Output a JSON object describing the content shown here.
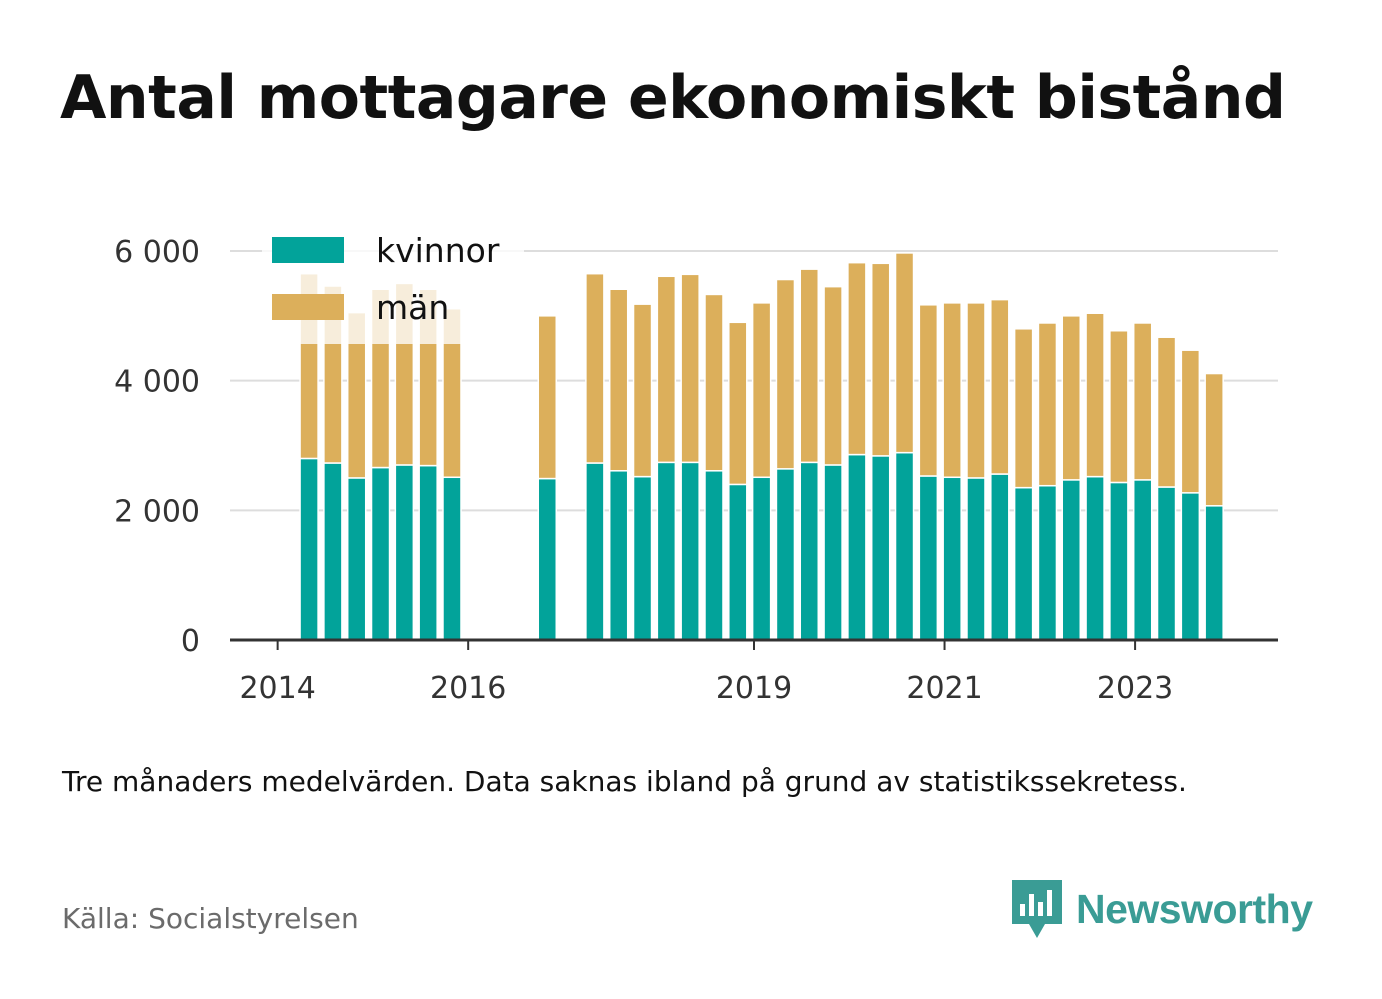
{
  "title": "Antal mottagare ekonomiskt bistånd",
  "note": "Tre månaders medelvärden. Data saknas ibland på grund av statistikssekretess.",
  "source": "Källa: Socialstyrelsen",
  "brand": {
    "name": "Newsworthy",
    "icon": "newsworthy-logo-icon",
    "color": "#3a9c95"
  },
  "colors": {
    "kvinnor": "#02a39a",
    "man": "#dcaf5b",
    "grid": "#dddddd",
    "axis": "#333333"
  },
  "chart_data": {
    "type": "bar",
    "stacked": true,
    "x_unit": "year",
    "x_ticks": [
      {
        "value": 2014.0,
        "label": "2014"
      },
      {
        "value": 2016.0,
        "label": "2016"
      },
      {
        "value": 2019.0,
        "label": "2019"
      },
      {
        "value": 2021.0,
        "label": "2021"
      },
      {
        "value": 2023.0,
        "label": "2023"
      }
    ],
    "y_ticks": [
      {
        "value": 0,
        "label": "0"
      },
      {
        "value": 2000,
        "label": "2 000"
      },
      {
        "value": 4000,
        "label": "4 000"
      },
      {
        "value": 6000,
        "label": "6 000"
      }
    ],
    "xlim": [
      2013.5,
      2024.5
    ],
    "ylim": [
      0,
      6000
    ],
    "grid": true,
    "legend": {
      "placement": "top-left",
      "entries": [
        "kvinnor",
        "män"
      ]
    },
    "x": [
      2014.33,
      2014.58,
      2014.83,
      2015.08,
      2015.33,
      2015.58,
      2015.83,
      2016.83,
      2017.33,
      2017.58,
      2017.83,
      2018.08,
      2018.33,
      2018.58,
      2018.83,
      2019.08,
      2019.33,
      2019.58,
      2019.83,
      2020.08,
      2020.33,
      2020.58,
      2020.83,
      2021.08,
      2021.33,
      2021.58,
      2021.83,
      2022.08,
      2022.33,
      2022.58,
      2022.83,
      2023.08,
      2023.33,
      2023.58,
      2023.83
    ],
    "series": [
      {
        "name": "kvinnor",
        "color": "#02a39a",
        "values": [
          2800,
          2730,
          2500,
          2660,
          2700,
          2690,
          2510,
          2490,
          2730,
          2610,
          2520,
          2740,
          2740,
          2610,
          2400,
          2510,
          2640,
          2740,
          2700,
          2860,
          2840,
          2890,
          2530,
          2510,
          2500,
          2560,
          2350,
          2380,
          2470,
          2520,
          2430,
          2470,
          2360,
          2270,
          2070
        ]
      },
      {
        "name": "män",
        "color": "#dcaf5b",
        "values": [
          2850,
          2730,
          2550,
          2750,
          2800,
          2720,
          2600,
          2510,
          2920,
          2800,
          2660,
          2870,
          2900,
          2720,
          2500,
          2690,
          2920,
          2980,
          2750,
          2960,
          2970,
          3080,
          2640,
          2690,
          2700,
          2690,
          2450,
          2510,
          2530,
          2520,
          2340,
          2420,
          2310,
          2200,
          2040
        ]
      }
    ]
  }
}
